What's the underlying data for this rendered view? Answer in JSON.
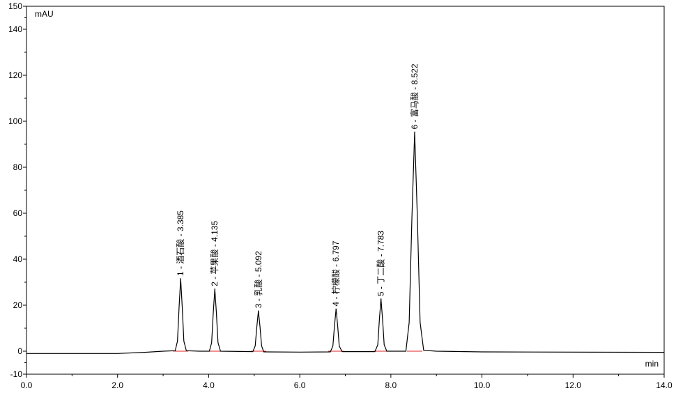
{
  "chart_data": {
    "type": "line",
    "y_label": "mAU",
    "x_label": "min",
    "xlim": [
      0,
      14
    ],
    "xticks": [
      {
        "value": 0,
        "label": "0.0"
      },
      {
        "value": 2,
        "label": "2.0"
      },
      {
        "value": 4,
        "label": "4.0"
      },
      {
        "value": 6,
        "label": "6.0"
      },
      {
        "value": 8,
        "label": "8.0"
      },
      {
        "value": 10,
        "label": "10.0"
      },
      {
        "value": 12,
        "label": "12.0"
      },
      {
        "value": 14,
        "label": "14.0"
      }
    ],
    "ylim": [
      -10,
      150
    ],
    "yticks": [
      -10,
      0,
      20,
      40,
      60,
      80,
      100,
      120,
      140,
      150
    ],
    "series": [
      {
        "color": "#000000",
        "x": [
          0,
          2.0,
          2.6,
          3.0,
          3.265,
          3.315,
          3.35,
          3.385,
          3.42,
          3.455,
          3.51,
          3.8,
          4.015,
          4.065,
          4.1,
          4.135,
          4.17,
          4.205,
          4.26,
          4.97,
          5.022,
          5.057,
          5.092,
          5.127,
          5.162,
          5.21,
          6.0,
          6.67,
          6.727,
          6.762,
          6.797,
          6.832,
          6.867,
          6.93,
          7.65,
          7.713,
          7.748,
          7.783,
          7.818,
          7.853,
          7.91,
          8.33,
          8.402,
          8.462,
          8.522,
          8.582,
          8.642,
          8.72,
          9.0,
          10.0,
          14.0
        ],
        "values": [
          -1,
          -1,
          -0.5,
          0,
          0.2,
          4.4,
          19,
          31.5,
          19,
          4.4,
          0.2,
          0,
          0,
          3.7,
          16.5,
          27,
          16.5,
          3.7,
          0,
          -0.2,
          2.3,
          10.6,
          17.5,
          10.6,
          2.3,
          -0.3,
          -0.4,
          -0.3,
          2.2,
          11,
          18.3,
          11,
          2.2,
          -0.2,
          -0.2,
          2.8,
          13.8,
          22.7,
          13.8,
          2.8,
          0,
          0,
          12.5,
          58,
          95.3,
          58,
          12.5,
          0.4,
          0,
          -0.3,
          -0.5
        ]
      }
    ],
    "peaks": {
      "labels": [
        "1 - 酒石酸 - 3.385",
        "2 - 苹果酸 - 4.135",
        "3 - 乳酸 - 5.092",
        "4 - 柠檬酸 - 6.797",
        "5 - 丁二酸 - 7.783",
        "6 - 富马酸 - 8.522"
      ],
      "x": [
        3.385,
        4.135,
        5.092,
        6.797,
        7.783,
        8.522
      ],
      "values": [
        31.5,
        27,
        17.5,
        18.3,
        22.7,
        95.3
      ]
    }
  }
}
